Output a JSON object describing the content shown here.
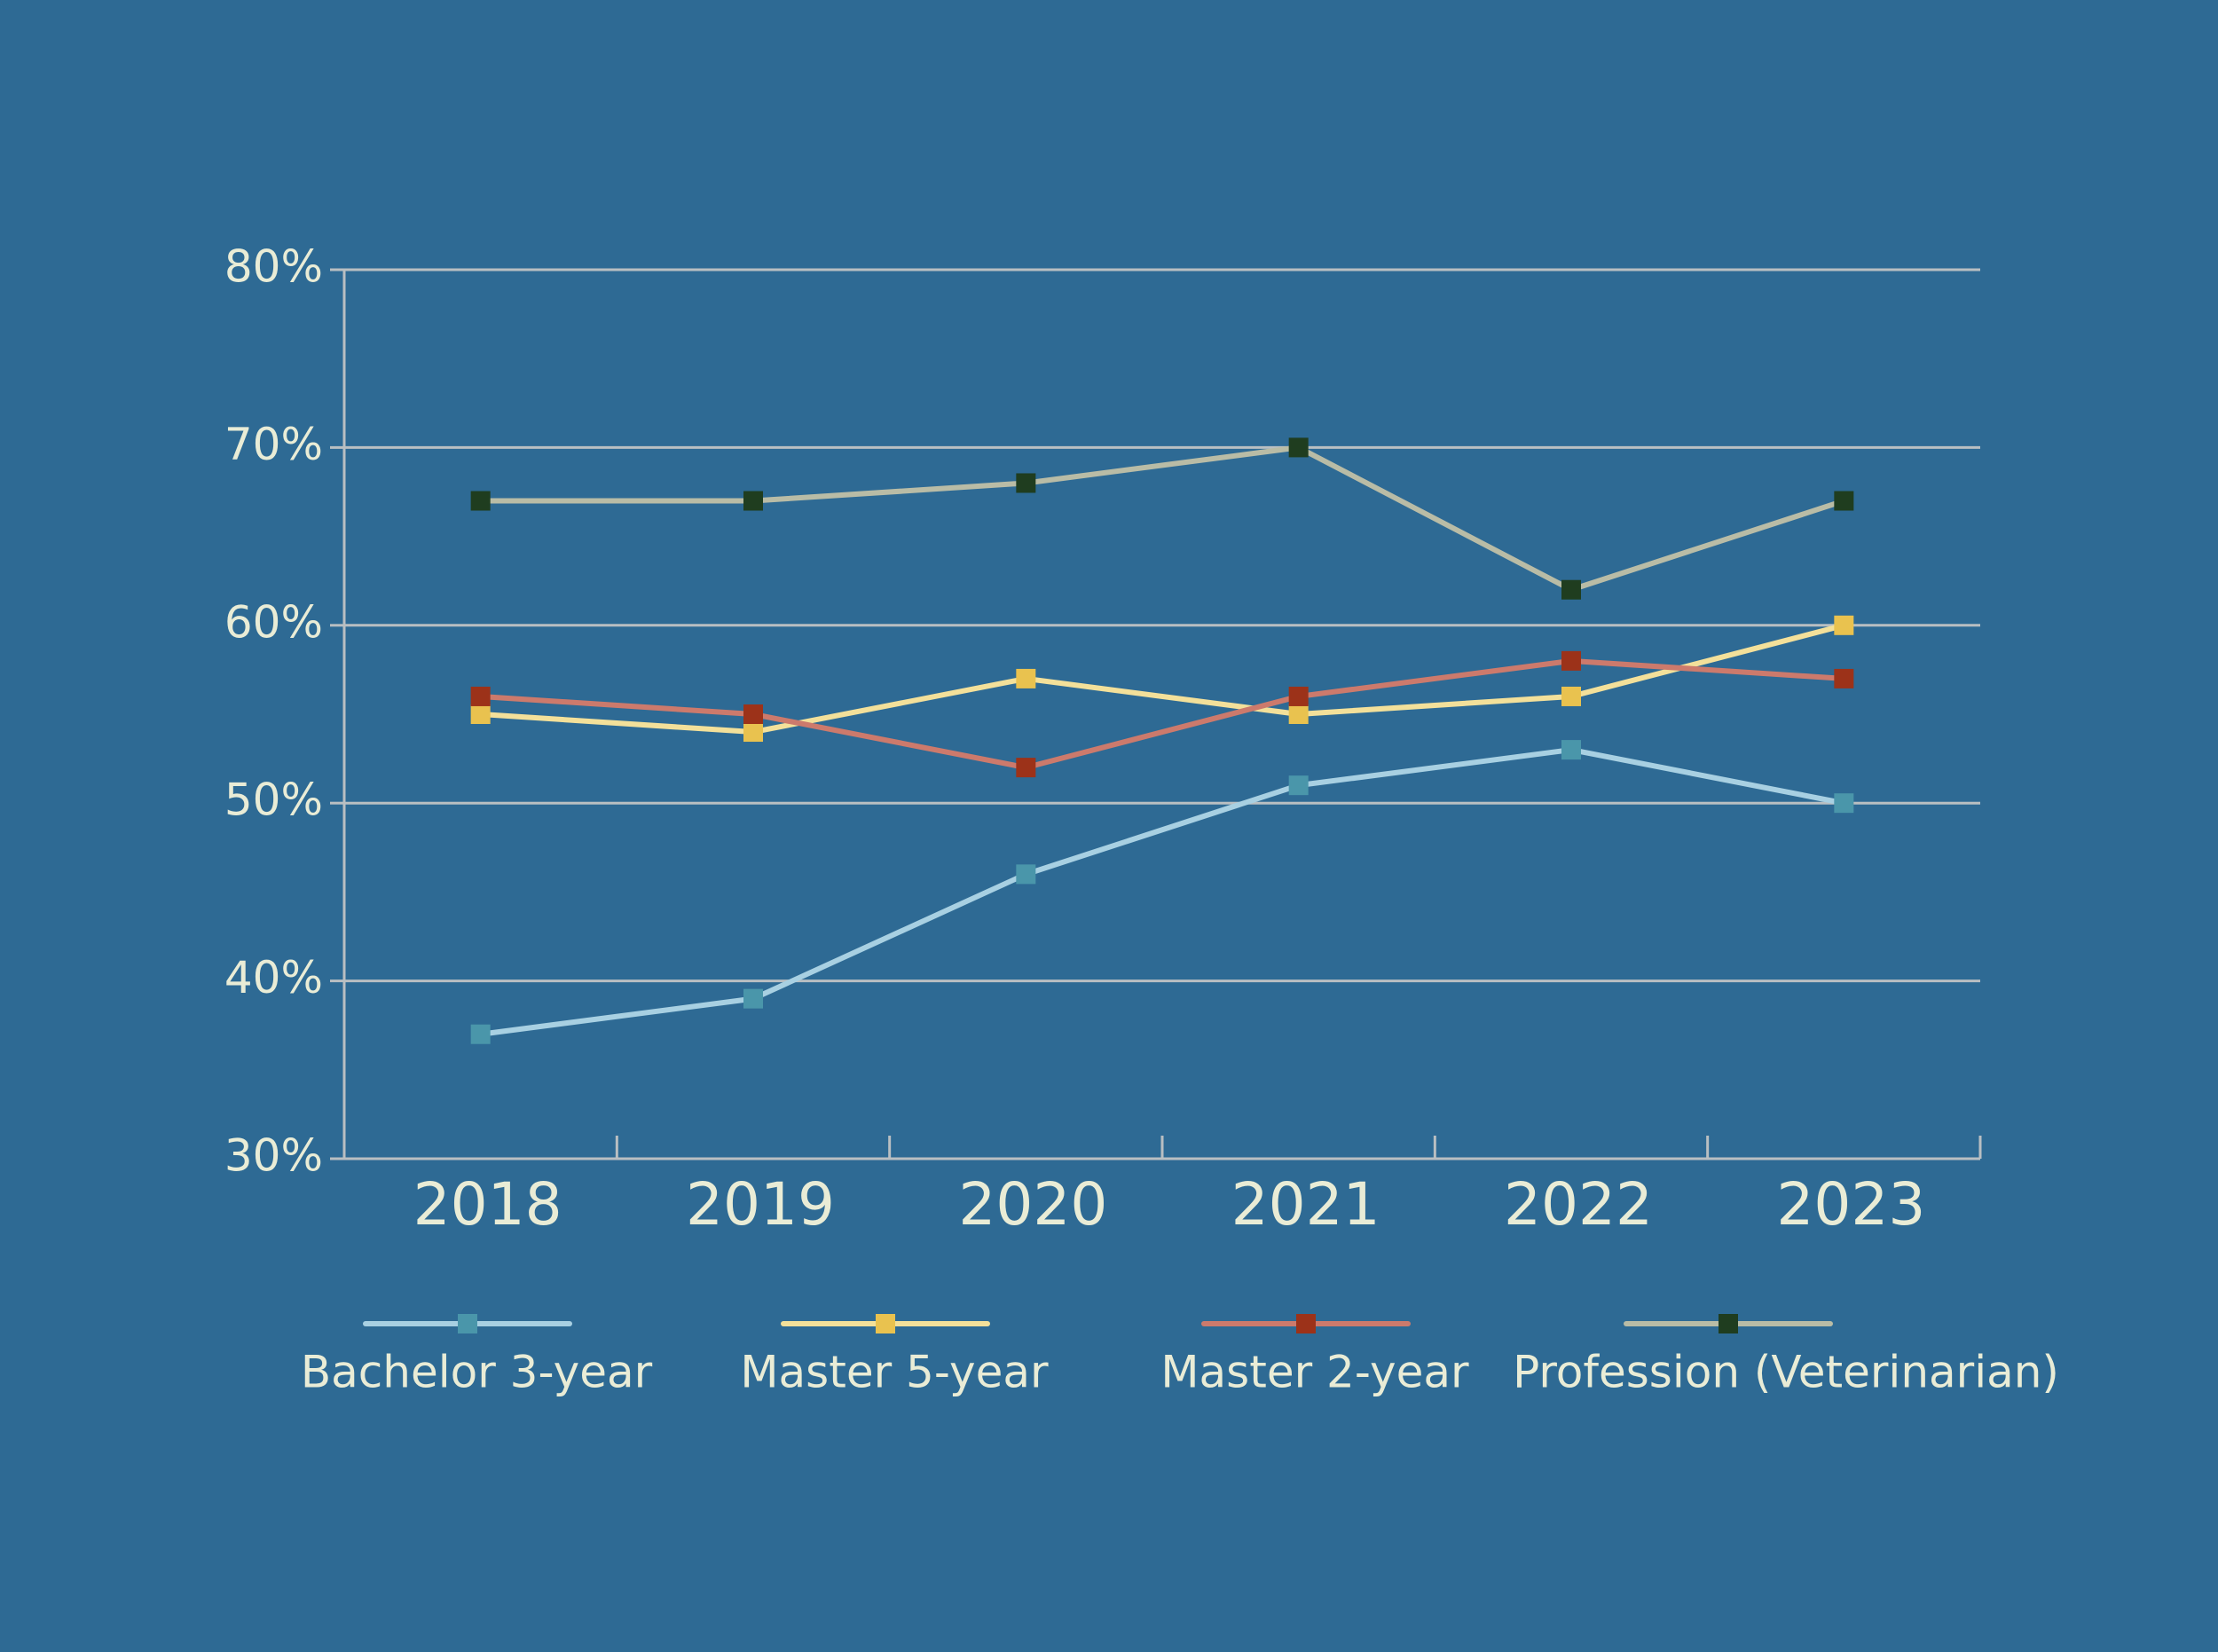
{
  "colors": {
    "background": "#2e6a94",
    "text": "#e9ecd6",
    "grid": "#b9bfc2",
    "axis": "#b9bfc2"
  },
  "chart_data": {
    "type": "line",
    "title": "",
    "xlabel": "",
    "ylabel": "",
    "categories": [
      "2018",
      "2019",
      "2020",
      "2021",
      "2022",
      "2023"
    ],
    "ylim": [
      30,
      80
    ],
    "yticks": [
      30,
      40,
      50,
      60,
      70,
      80
    ],
    "ytick_labels": [
      "30%",
      "40%",
      "50%",
      "60%",
      "70%",
      "80%"
    ],
    "grid": true,
    "legend_position": "bottom",
    "series": [
      {
        "name": "Bachelor 3-year",
        "values": [
          37,
          39,
          46,
          51,
          53,
          50
        ],
        "line_color": "#a8d0e2",
        "marker_color": "#4a96aa"
      },
      {
        "name": "Master 5-year",
        "values": [
          55,
          54,
          57,
          55,
          56,
          60
        ],
        "line_color": "#f3e09a",
        "marker_color": "#e9c24f"
      },
      {
        "name": "Master 2-year",
        "values": [
          56,
          55,
          52,
          56,
          58,
          57
        ],
        "line_color": "#cc7a6c",
        "marker_color": "#9c3219"
      },
      {
        "name": "Profession (Veterinarian)",
        "values": [
          67,
          67,
          68,
          70,
          62,
          67
        ],
        "line_color": "#b9bca6",
        "marker_color": "#1f3d1f"
      }
    ]
  }
}
